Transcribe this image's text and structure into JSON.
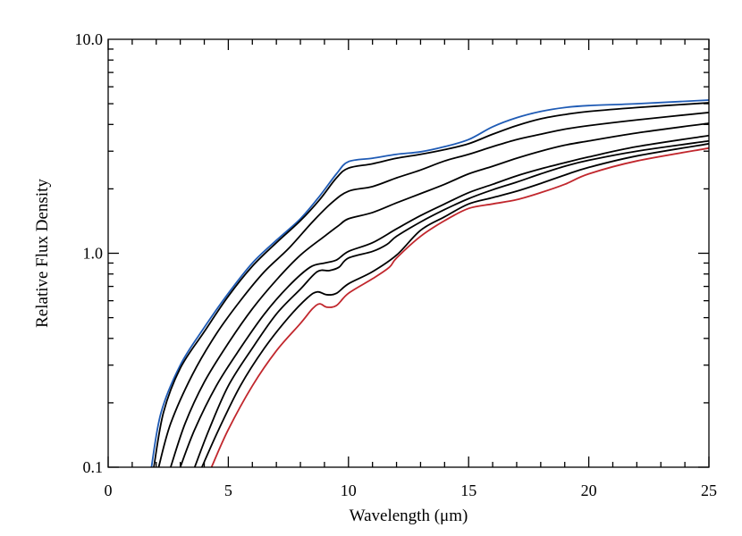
{
  "chart_data": {
    "type": "line",
    "title": "",
    "xlabel": "Wavelength (μm)",
    "ylabel": "Relative Flux Density",
    "xlim": [
      0,
      25
    ],
    "ylim": [
      0.1,
      10.0
    ],
    "yscale": "log",
    "grid": false,
    "legend": "none",
    "x_ticks": [
      {
        "value": 0,
        "label": "0"
      },
      {
        "value": 5,
        "label": "5"
      },
      {
        "value": 10,
        "label": "10"
      },
      {
        "value": 15,
        "label": "15"
      },
      {
        "value": 20,
        "label": "20"
      },
      {
        "value": 25,
        "label": "25"
      }
    ],
    "y_ticks": [
      {
        "value": 0.1,
        "label": "0.1"
      },
      {
        "value": 1.0,
        "label": "1.0"
      },
      {
        "value": 10.0,
        "label": "10.0"
      }
    ],
    "series": [
      {
        "color": "#1f5bb5",
        "points": [
          [
            1.8,
            0.1
          ],
          [
            2.2,
            0.18
          ],
          [
            3,
            0.3
          ],
          [
            4,
            0.45
          ],
          [
            5,
            0.65
          ],
          [
            6,
            0.9
          ],
          [
            7,
            1.15
          ],
          [
            8,
            1.45
          ],
          [
            8.8,
            1.85
          ],
          [
            9.5,
            2.35
          ],
          [
            10,
            2.68
          ],
          [
            11,
            2.78
          ],
          [
            12,
            2.9
          ],
          [
            13,
            2.98
          ],
          [
            14,
            3.15
          ],
          [
            15,
            3.4
          ],
          [
            16,
            3.9
          ],
          [
            17,
            4.3
          ],
          [
            18,
            4.6
          ],
          [
            19,
            4.8
          ],
          [
            20,
            4.9
          ],
          [
            22,
            5.0
          ],
          [
            25,
            5.2
          ]
        ]
      },
      {
        "color": "#000000",
        "points": [
          [
            1.9,
            0.1
          ],
          [
            2.3,
            0.18
          ],
          [
            3,
            0.29
          ],
          [
            4,
            0.43
          ],
          [
            5,
            0.63
          ],
          [
            6,
            0.87
          ],
          [
            7,
            1.12
          ],
          [
            8,
            1.42
          ],
          [
            8.8,
            1.78
          ],
          [
            9.5,
            2.25
          ],
          [
            10,
            2.5
          ],
          [
            11,
            2.62
          ],
          [
            12,
            2.78
          ],
          [
            13,
            2.9
          ],
          [
            14,
            3.05
          ],
          [
            15,
            3.25
          ],
          [
            16,
            3.6
          ],
          [
            17,
            3.95
          ],
          [
            18,
            4.25
          ],
          [
            19,
            4.45
          ],
          [
            20,
            4.6
          ],
          [
            22,
            4.8
          ],
          [
            25,
            5.05
          ]
        ]
      },
      {
        "color": "#000000",
        "points": [
          [
            2.1,
            0.1
          ],
          [
            2.6,
            0.16
          ],
          [
            3.5,
            0.27
          ],
          [
            4.5,
            0.42
          ],
          [
            5.5,
            0.6
          ],
          [
            6.5,
            0.82
          ],
          [
            7.5,
            1.05
          ],
          [
            8.5,
            1.4
          ],
          [
            9.3,
            1.72
          ],
          [
            10,
            1.95
          ],
          [
            11,
            2.05
          ],
          [
            12,
            2.25
          ],
          [
            13,
            2.45
          ],
          [
            14,
            2.7
          ],
          [
            15,
            2.9
          ],
          [
            16,
            3.15
          ],
          [
            17,
            3.4
          ],
          [
            18,
            3.6
          ],
          [
            19,
            3.8
          ],
          [
            20,
            3.95
          ],
          [
            22,
            4.2
          ],
          [
            25,
            4.55
          ]
        ]
      },
      {
        "color": "#000000",
        "points": [
          [
            2.6,
            0.1
          ],
          [
            3.2,
            0.16
          ],
          [
            4,
            0.25
          ],
          [
            5,
            0.38
          ],
          [
            6,
            0.55
          ],
          [
            7,
            0.75
          ],
          [
            8,
            0.98
          ],
          [
            9,
            1.2
          ],
          [
            9.6,
            1.35
          ],
          [
            10,
            1.45
          ],
          [
            11,
            1.55
          ],
          [
            12,
            1.72
          ],
          [
            13,
            1.9
          ],
          [
            14,
            2.1
          ],
          [
            15,
            2.35
          ],
          [
            16,
            2.55
          ],
          [
            17,
            2.78
          ],
          [
            18,
            3.0
          ],
          [
            19,
            3.2
          ],
          [
            20,
            3.35
          ],
          [
            22,
            3.65
          ],
          [
            25,
            4.05
          ]
        ]
      },
      {
        "color": "#000000",
        "points": [
          [
            3.0,
            0.1
          ],
          [
            3.6,
            0.15
          ],
          [
            4.5,
            0.24
          ],
          [
            5.5,
            0.36
          ],
          [
            6.5,
            0.52
          ],
          [
            7.5,
            0.7
          ],
          [
            8.4,
            0.86
          ],
          [
            9,
            0.9
          ],
          [
            9.5,
            0.93
          ],
          [
            10,
            1.02
          ],
          [
            11,
            1.12
          ],
          [
            12,
            1.3
          ],
          [
            13,
            1.5
          ],
          [
            14,
            1.7
          ],
          [
            15,
            1.92
          ],
          [
            16,
            2.1
          ],
          [
            17,
            2.3
          ],
          [
            18,
            2.48
          ],
          [
            19,
            2.65
          ],
          [
            20,
            2.82
          ],
          [
            22,
            3.15
          ],
          [
            25,
            3.55
          ]
        ]
      },
      {
        "color": "#000000",
        "points": [
          [
            3.6,
            0.1
          ],
          [
            4.2,
            0.15
          ],
          [
            5,
            0.24
          ],
          [
            6,
            0.36
          ],
          [
            7,
            0.52
          ],
          [
            8,
            0.68
          ],
          [
            8.7,
            0.82
          ],
          [
            9.2,
            0.83
          ],
          [
            9.6,
            0.86
          ],
          [
            10,
            0.95
          ],
          [
            11,
            1.02
          ],
          [
            11.6,
            1.1
          ],
          [
            12,
            1.2
          ],
          [
            13,
            1.4
          ],
          [
            14,
            1.6
          ],
          [
            15,
            1.8
          ],
          [
            16,
            1.98
          ],
          [
            17,
            2.15
          ],
          [
            18,
            2.35
          ],
          [
            19,
            2.55
          ],
          [
            20,
            2.72
          ],
          [
            22,
            3.0
          ],
          [
            25,
            3.35
          ]
        ]
      },
      {
        "color": "#000000",
        "points": [
          [
            3.9,
            0.1
          ],
          [
            4.6,
            0.15
          ],
          [
            5.5,
            0.24
          ],
          [
            6.5,
            0.36
          ],
          [
            7.5,
            0.5
          ],
          [
            8.3,
            0.62
          ],
          [
            8.7,
            0.66
          ],
          [
            9.1,
            0.64
          ],
          [
            9.5,
            0.65
          ],
          [
            10,
            0.72
          ],
          [
            11,
            0.82
          ],
          [
            12,
            0.98
          ],
          [
            13,
            1.28
          ],
          [
            14,
            1.48
          ],
          [
            15,
            1.7
          ],
          [
            16,
            1.82
          ],
          [
            17,
            1.95
          ],
          [
            18,
            2.12
          ],
          [
            19,
            2.32
          ],
          [
            20,
            2.52
          ],
          [
            22,
            2.85
          ],
          [
            25,
            3.25
          ]
        ]
      },
      {
        "color": "#c1272d",
        "points": [
          [
            4.3,
            0.1
          ],
          [
            5,
            0.15
          ],
          [
            6,
            0.24
          ],
          [
            7,
            0.35
          ],
          [
            8,
            0.47
          ],
          [
            8.5,
            0.55
          ],
          [
            8.8,
            0.58
          ],
          [
            9.1,
            0.56
          ],
          [
            9.5,
            0.57
          ],
          [
            10,
            0.65
          ],
          [
            11,
            0.76
          ],
          [
            11.7,
            0.86
          ],
          [
            12,
            0.95
          ],
          [
            13,
            1.2
          ],
          [
            14,
            1.42
          ],
          [
            15,
            1.62
          ],
          [
            16,
            1.7
          ],
          [
            17,
            1.78
          ],
          [
            18,
            1.92
          ],
          [
            19,
            2.1
          ],
          [
            20,
            2.35
          ],
          [
            22,
            2.7
          ],
          [
            25,
            3.1
          ]
        ]
      }
    ]
  }
}
